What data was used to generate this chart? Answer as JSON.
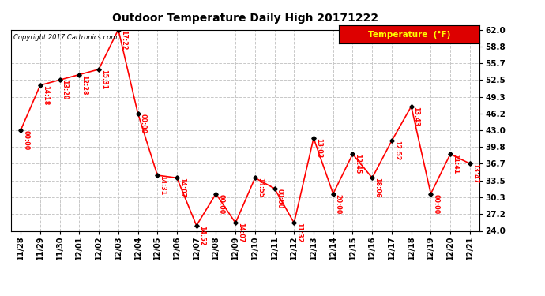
{
  "title": "Outdoor Temperature Daily High 20171222",
  "copyright": "Copyright 2017 Cartronics.com",
  "legend_label": "Temperature  (°F)",
  "x_labels": [
    "11/28",
    "11/29",
    "11/30",
    "12/01",
    "12/02",
    "12/03",
    "12/04",
    "12/05",
    "12/06",
    "12/07",
    "12/08",
    "12/09",
    "12/10",
    "12/11",
    "12/12",
    "12/13",
    "12/14",
    "12/15",
    "12/16",
    "12/17",
    "12/18",
    "12/19",
    "12/20",
    "12/21"
  ],
  "temperatures": [
    43.0,
    51.5,
    52.5,
    53.5,
    54.5,
    62.0,
    46.2,
    34.5,
    34.0,
    25.0,
    31.0,
    25.5,
    34.0,
    32.0,
    25.5,
    41.5,
    31.0,
    38.5,
    34.0,
    41.0,
    47.5,
    31.0,
    38.5,
    36.7
  ],
  "time_labels": [
    "00:00",
    "14:18",
    "13:20",
    "12:28",
    "15:31",
    "17:22",
    "00:00",
    "14:31",
    "14:07",
    "14:52",
    "00:00",
    "14:07",
    "14:55",
    "00:00",
    "11:32",
    "13:03",
    "20:00",
    "12:45",
    "18:06",
    "12:52",
    "13:43",
    "00:00",
    "11:41",
    "13:47"
  ],
  "ylim_min": 24.0,
  "ylim_max": 62.0,
  "ytick_vals": [
    24.0,
    27.2,
    30.3,
    33.5,
    36.7,
    39.8,
    43.0,
    46.2,
    49.3,
    52.5,
    55.7,
    58.8,
    62.0
  ],
  "ytick_labels": [
    "24.0",
    "27.2",
    "30.3",
    "33.5",
    "36.7",
    "39.8",
    "43.0",
    "46.2",
    "49.3",
    "52.5",
    "55.7",
    "58.8",
    "62.0"
  ],
  "line_color": "#ff0000",
  "marker_color": "#000000",
  "bg_color": "#ffffff",
  "grid_color": "#c8c8c8",
  "label_color": "#ff0000",
  "legend_bg": "#dd0000",
  "legend_text_color": "#ffff00",
  "title_color": "#000000",
  "copyright_color": "#000000"
}
